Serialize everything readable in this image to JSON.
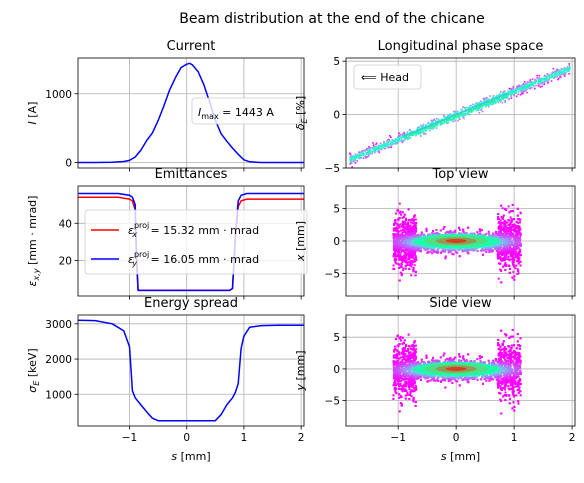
{
  "figure": {
    "suptitle": "Beam distribution at the end of the chicane"
  },
  "colors": {
    "blue": "#0000ff",
    "red": "#ff0000",
    "grid": "#b0b0b0"
  },
  "chart_data": [
    {
      "id": "current",
      "type": "line",
      "title": "Current",
      "xlabel": "",
      "ylabel": "I [A]",
      "xlim": [
        -1.9,
        2.05
      ],
      "ylim": [
        -80,
        1520
      ],
      "xticks": [
        -1,
        0,
        1,
        2
      ],
      "yticks": [
        0,
        1000
      ],
      "grid": true,
      "annotation": "I_max = 1443 A",
      "series": [
        {
          "color": "#0000ff",
          "x": [
            -1.9,
            -1.6,
            -1.3,
            -1.1,
            -1.0,
            -0.9,
            -0.8,
            -0.7,
            -0.6,
            -0.5,
            -0.4,
            -0.3,
            -0.2,
            -0.1,
            0.0,
            0.05,
            0.1,
            0.2,
            0.3,
            0.4,
            0.5,
            0.6,
            0.7,
            0.8,
            0.9,
            1.0,
            1.1,
            1.3,
            1.6,
            2.05
          ],
          "y": [
            0,
            0,
            5,
            15,
            30,
            80,
            180,
            320,
            430,
            610,
            820,
            1050,
            1230,
            1380,
            1430,
            1443,
            1420,
            1320,
            1130,
            880,
            620,
            420,
            310,
            210,
            120,
            40,
            10,
            0,
            0,
            0
          ]
        }
      ]
    },
    {
      "id": "longitudinal-phase-space",
      "type": "scatter",
      "title": "Longitudinal phase space",
      "xlabel": "",
      "ylabel": "δ_E [%]",
      "xlim": [
        -1.9,
        2.05
      ],
      "ylim": [
        -5,
        5.3
      ],
      "xticks": [
        -1,
        0,
        1,
        2
      ],
      "yticks": [
        -5,
        0,
        5
      ],
      "grid": true,
      "legend": {
        "label": "⟸ Head",
        "loc": "upper-left"
      },
      "relation": {
        "slope": 2.25,
        "spread": 0.22,
        "s_range": [
          -1.85,
          1.95
        ]
      },
      "colormap": "rainbow"
    },
    {
      "id": "emittances",
      "type": "line",
      "title": "Emittances",
      "xlabel": "",
      "ylabel": "ε_x,y [mm · mrad]",
      "xlim": [
        -1.9,
        2.05
      ],
      "ylim": [
        1,
        60
      ],
      "xticks": [
        -1,
        0,
        1,
        2
      ],
      "yticks": [
        20,
        40
      ],
      "grid": true,
      "legend": {
        "loc": "center-left"
      },
      "series": [
        {
          "name": "ε_x^proj = 15.32 mm · mrad",
          "color": "#ff0000",
          "x": [
            -1.9,
            -1.5,
            -1.2,
            -1.0,
            -0.95,
            -0.9,
            -0.88,
            -0.85,
            -0.7,
            -0.3,
            0.3,
            0.6,
            0.75,
            0.8,
            0.85,
            0.9,
            0.95,
            1.05,
            1.4,
            1.7,
            2.05
          ],
          "y": [
            54,
            54,
            54,
            53,
            52,
            47,
            20,
            4,
            4,
            4,
            4,
            4,
            4,
            5,
            30,
            49,
            52,
            53,
            53,
            53,
            53
          ]
        },
        {
          "name": "ε_y^proj = 16.05 mm · mrad",
          "color": "#0000ff",
          "x": [
            -1.9,
            -1.5,
            -1.2,
            -1.0,
            -0.95,
            -0.9,
            -0.88,
            -0.85,
            -0.7,
            -0.3,
            0.3,
            0.6,
            0.75,
            0.8,
            0.85,
            0.9,
            0.95,
            1.05,
            1.4,
            1.7,
            2.05
          ],
          "y": [
            56,
            56,
            56,
            55,
            54,
            50,
            25,
            4,
            4,
            4,
            4,
            4,
            4,
            5,
            33,
            52,
            55,
            56,
            56,
            56,
            56
          ]
        }
      ]
    },
    {
      "id": "top-view",
      "type": "heatmap",
      "title": "Top view",
      "xlabel": "",
      "ylabel": "x [mm]",
      "xlim": [
        -1.9,
        2.05
      ],
      "ylim": [
        -8.5,
        8.5
      ],
      "xticks": [
        -1,
        0,
        1,
        2
      ],
      "yticks": [
        -5,
        0,
        5
      ],
      "grid": true,
      "colormap": "rainbow",
      "distribution": {
        "core_halfwidth": 0.7,
        "edge_start": 0.7,
        "edge_end": 1.1,
        "core_sigma": 0.9,
        "edge_sigma": 2.0
      }
    },
    {
      "id": "energy-spread",
      "type": "line",
      "title": "Energy spread",
      "xlabel": "s [mm]",
      "ylabel": "σ_E [keV]",
      "xlim": [
        -1.9,
        2.05
      ],
      "ylim": [
        100,
        3250
      ],
      "xticks": [
        -1,
        0,
        1,
        2
      ],
      "xticklabels": [
        "−1",
        "0",
        "1",
        "2"
      ],
      "yticks": [
        1000,
        2000,
        3000
      ],
      "grid": true,
      "series": [
        {
          "color": "#0000ff",
          "x": [
            -1.9,
            -1.6,
            -1.3,
            -1.1,
            -1.0,
            -0.95,
            -0.9,
            -0.8,
            -0.7,
            -0.6,
            -0.5,
            -0.2,
            0.2,
            0.5,
            0.6,
            0.7,
            0.8,
            0.85,
            0.9,
            0.95,
            1.0,
            1.1,
            1.3,
            1.6,
            2.05
          ],
          "y": [
            3100,
            3090,
            3000,
            2800,
            2350,
            1100,
            900,
            700,
            500,
            320,
            250,
            250,
            250,
            250,
            420,
            700,
            900,
            1050,
            1300,
            2300,
            2650,
            2900,
            2950,
            2960,
            2960
          ]
        }
      ]
    },
    {
      "id": "side-view",
      "type": "heatmap",
      "title": "Side view",
      "xlabel": "s [mm]",
      "ylabel": "y [mm]",
      "xlim": [
        -1.9,
        2.05
      ],
      "ylim": [
        -9,
        8.5
      ],
      "xticks": [
        -1,
        0,
        1,
        2
      ],
      "xticklabels": [
        "−1",
        "0",
        "1",
        "2"
      ],
      "yticks": [
        -5,
        0,
        5
      ],
      "grid": true,
      "colormap": "rainbow",
      "distribution": {
        "core_halfwidth": 0.7,
        "edge_start": 0.7,
        "edge_end": 1.1,
        "core_sigma": 1.0,
        "edge_sigma": 2.2
      }
    }
  ]
}
